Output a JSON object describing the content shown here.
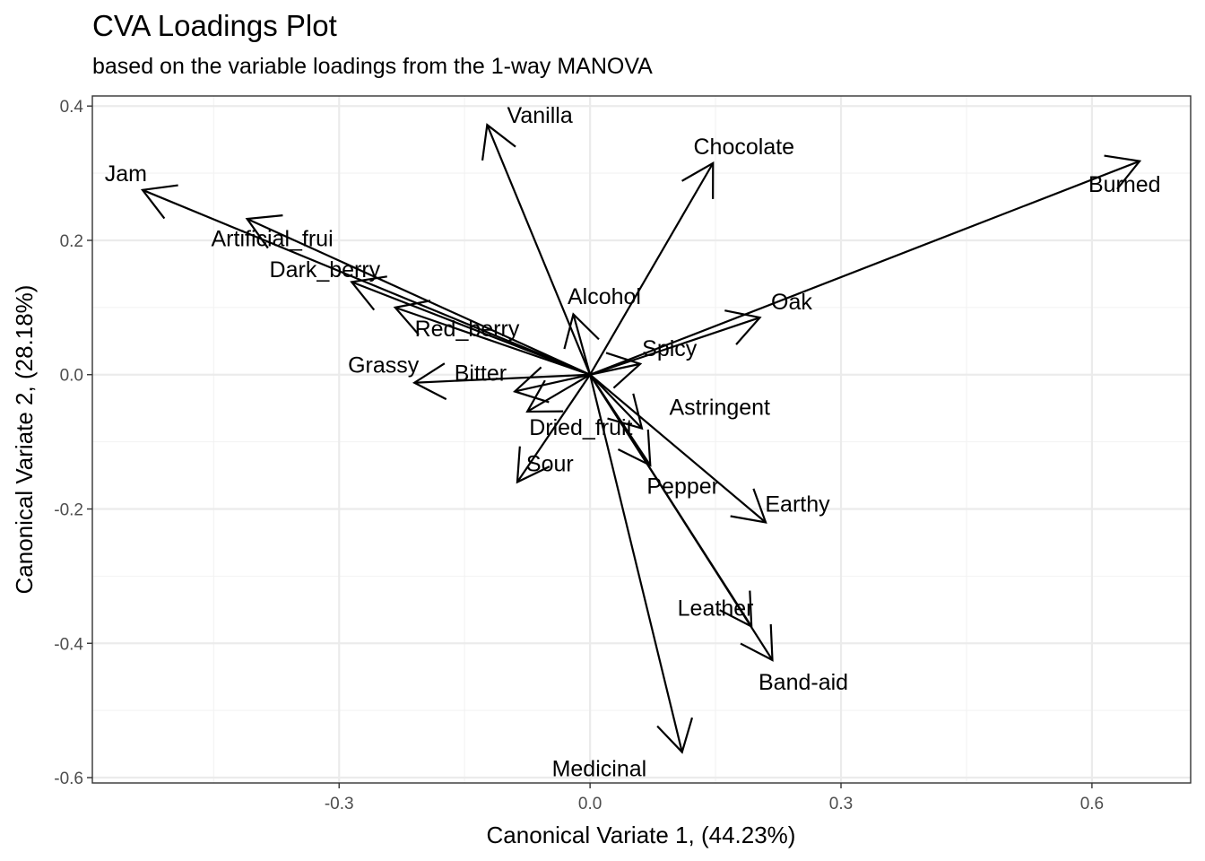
{
  "chart_data": {
    "type": "scatter",
    "subtype": "biplot-arrows",
    "title": "CVA Loadings Plot",
    "subtitle": "based on the variable loadings from the 1-way MANOVA",
    "xlabel": "Canonical Variate 1, (44.23%)",
    "ylabel": "Canonical Variate 2, (28.18%)",
    "xlim": [
      -0.595,
      0.718
    ],
    "ylim": [
      -0.608,
      0.415
    ],
    "xticks": [
      -0.3,
      0.0,
      0.3,
      0.6
    ],
    "xtick_labels": [
      "-0.3",
      "0.0",
      "0.3",
      "0.6"
    ],
    "yticks": [
      -0.6,
      -0.4,
      -0.2,
      0.0,
      0.2,
      0.4
    ],
    "ytick_labels": [
      "-0.6",
      "-0.4",
      "-0.2",
      "0.0",
      "0.2",
      "0.4"
    ],
    "grid": true,
    "origin": [
      0,
      0
    ],
    "series": [
      {
        "label": "Jam",
        "x": -0.535,
        "y": 0.275,
        "lx": -0.555,
        "ly": 0.3
      },
      {
        "label": "Artificial_frui",
        "x": -0.41,
        "y": 0.232,
        "lx": -0.38,
        "ly": 0.203
      },
      {
        "label": "Dark_berry",
        "x": -0.285,
        "y": 0.138,
        "lx": -0.317,
        "ly": 0.157
      },
      {
        "label": "Red_berry",
        "x": -0.233,
        "y": 0.1,
        "lx": -0.147,
        "ly": 0.069
      },
      {
        "label": "Grassy",
        "x": -0.21,
        "y": -0.012,
        "lx": -0.247,
        "ly": 0.015
      },
      {
        "label": "Bitter",
        "x": -0.09,
        "y": -0.025,
        "lx": -0.131,
        "ly": 0.003
      },
      {
        "label": "Dried_fruit",
        "x": -0.075,
        "y": -0.055,
        "lx": -0.011,
        "ly": -0.078
      },
      {
        "label": "Sour",
        "x": -0.087,
        "y": -0.16,
        "lx": -0.048,
        "ly": -0.132
      },
      {
        "label": "Vanilla",
        "x": -0.123,
        "y": 0.372,
        "lx": -0.06,
        "ly": 0.387
      },
      {
        "label": "Alcohol",
        "x": -0.02,
        "y": 0.09,
        "lx": 0.017,
        "ly": 0.117
      },
      {
        "label": "Chocolate",
        "x": 0.147,
        "y": 0.315,
        "lx": 0.184,
        "ly": 0.34
      },
      {
        "label": "Burned",
        "x": 0.657,
        "y": 0.318,
        "lx": 0.639,
        "ly": 0.284
      },
      {
        "label": "Oak",
        "x": 0.203,
        "y": 0.085,
        "lx": 0.241,
        "ly": 0.109
      },
      {
        "label": "Spicy",
        "x": 0.06,
        "y": 0.016,
        "lx": 0.095,
        "ly": 0.04
      },
      {
        "label": "Astringent",
        "x": 0.062,
        "y": -0.08,
        "lx": 0.155,
        "ly": -0.048
      },
      {
        "label": "Pepper",
        "x": 0.072,
        "y": -0.135,
        "lx": 0.111,
        "ly": -0.165
      },
      {
        "label": "Earthy",
        "x": 0.21,
        "y": -0.22,
        "lx": 0.248,
        "ly": -0.192
      },
      {
        "label": "Leather",
        "x": 0.193,
        "y": -0.375,
        "lx": 0.15,
        "ly": -0.347
      },
      {
        "label": "Band-aid",
        "x": 0.218,
        "y": -0.425,
        "lx": 0.255,
        "ly": -0.457
      },
      {
        "label": "Medicinal",
        "x": 0.11,
        "y": -0.562,
        "lx": 0.011,
        "ly": -0.586
      }
    ]
  }
}
